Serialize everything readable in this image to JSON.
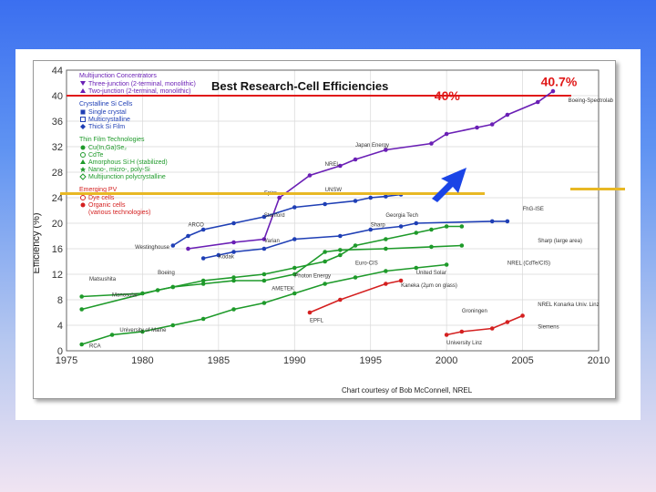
{
  "chart_data": {
    "type": "line",
    "title": "Best Research-Cell Efficiencies",
    "ylabel": "Efficiency (%)",
    "xlabel": "",
    "xlim": [
      1975,
      2010
    ],
    "ylim": [
      0,
      44
    ],
    "xticks": [
      1975,
      1980,
      1985,
      1990,
      1995,
      2000,
      2005,
      2010
    ],
    "yticks": [
      0,
      4,
      8,
      12,
      16,
      20,
      24,
      28,
      32,
      36,
      40,
      44
    ],
    "credit": "Chart courtesy of Bob McConnell, NREL",
    "callout_record": "40.7%",
    "callout_goal": "40%",
    "legend": {
      "groups": [
        {
          "title": "Multijunction Concentrators",
          "color": "#6a1fb5",
          "entries": [
            {
              "label": "Three-junction (2-terminal, monolithic)",
              "marker": "triangle-down"
            },
            {
              "label": "Two-junction (2-terminal, monolithic)",
              "marker": "triangle-up"
            }
          ]
        },
        {
          "title": "Crystalline Si Cells",
          "color": "#1f3fb5",
          "entries": [
            {
              "label": "Single crystal",
              "marker": "square"
            },
            {
              "label": "Multicrystalline",
              "marker": "square-open"
            },
            {
              "label": "Thick Si Film",
              "marker": "diamond"
            }
          ]
        },
        {
          "title": "Thin Film Technologies",
          "color": "#1e9a2a",
          "entries": [
            {
              "label": "Cu(In,Ga)Se₂",
              "marker": "circle"
            },
            {
              "label": "CdTe",
              "marker": "circle-open"
            },
            {
              "label": "Amorphous Si:H (stabilized)",
              "marker": "triangle-up"
            },
            {
              "label": "Nano-, micro-, poly-Si",
              "marker": "star"
            },
            {
              "label": "Multijunction polycrystalline",
              "marker": "diamond-open"
            }
          ]
        },
        {
          "title": "Emerging PV",
          "color": "#d42020",
          "entries": [
            {
              "label": "Dye cells",
              "marker": "circle-open"
            },
            {
              "label": "Organic cells",
              "marker": "circle"
            },
            {
              "label": "(various technologies)",
              "marker": "none"
            }
          ]
        }
      ]
    },
    "series": [
      {
        "name": "Multijunction Concentrators",
        "color": "#6a1fb5",
        "x": [
          1983,
          1986,
          1988,
          1989,
          1991,
          1993,
          1994,
          1996,
          1999,
          2000,
          2002,
          2003,
          2004,
          2006,
          2007
        ],
        "y": [
          16,
          17,
          17.5,
          24,
          27.5,
          29,
          30,
          31.5,
          32.5,
          34,
          35,
          35.5,
          37,
          39,
          40.7
        ]
      },
      {
        "name": "Single crystal Si",
        "color": "#1f3fb5",
        "x": [
          1982,
          1983,
          1984,
          1986,
          1988,
          1990,
          1992,
          1994,
          1995,
          1996,
          1997
        ],
        "y": [
          16.5,
          18,
          19,
          20,
          21,
          22.5,
          23,
          23.5,
          24,
          24.2,
          24.5
        ]
      },
      {
        "name": "Multicrystalline Si",
        "color": "#1f3fb5",
        "x": [
          1984,
          1985,
          1986,
          1988,
          1990,
          1993,
          1995,
          1997,
          1998,
          2003,
          2004
        ],
        "y": [
          14.5,
          15,
          15.5,
          16,
          17.5,
          18,
          19,
          19.5,
          20,
          20.3,
          20.3
        ]
      },
      {
        "name": "Cu(In,Ga)Se2",
        "color": "#1e9a2a",
        "x": [
          1976,
          1981,
          1982,
          1984,
          1986,
          1988,
          1990,
          1992,
          1993,
          1994,
          1996,
          1998,
          1999,
          2000,
          2001
        ],
        "y": [
          6.5,
          9.5,
          10,
          11,
          11.5,
          12,
          13,
          14,
          15,
          16.5,
          17.5,
          18.5,
          19,
          19.5,
          19.5
        ]
      },
      {
        "name": "CdTe",
        "color": "#1e9a2a",
        "x": [
          1976,
          1980,
          1982,
          1984,
          1986,
          1988,
          1990,
          1992,
          1993,
          1996,
          1999,
          2001
        ],
        "y": [
          8.5,
          9,
          10,
          10.5,
          11,
          11,
          12,
          15.5,
          15.8,
          16,
          16.3,
          16.5
        ]
      },
      {
        "name": "Amorphous Si:H",
        "color": "#1e9a2a",
        "x": [
          1976,
          1978,
          1980,
          1982,
          1984,
          1986,
          1988,
          1990,
          1992,
          1994,
          1996,
          1998,
          2000
        ],
        "y": [
          1,
          2.5,
          3,
          4,
          5,
          6.5,
          7.5,
          9,
          10.5,
          11.5,
          12.5,
          13,
          13.5
        ]
      },
      {
        "name": "Dye cells",
        "color": "#d42020",
        "x": [
          1991,
          1993,
          1996,
          1997
        ],
        "y": [
          6,
          8,
          10.5,
          11
        ]
      },
      {
        "name": "Organic cells",
        "color": "#d42020",
        "x": [
          2000,
          2001,
          2003,
          2004,
          2005
        ],
        "y": [
          2.5,
          3,
          3.5,
          4.5,
          5.5
        ]
      }
    ],
    "annotations": [
      {
        "text": "Boeing-Spectrolab",
        "x": 2008,
        "y": 39
      },
      {
        "text": "Japan Energy",
        "x": 1994,
        "y": 32
      },
      {
        "text": "NREL",
        "x": 1992,
        "y": 29
      },
      {
        "text": "Spire",
        "x": 1988,
        "y": 24.5
      },
      {
        "text": "Varian",
        "x": 1988,
        "y": 17
      },
      {
        "text": "UNSW",
        "x": 1992,
        "y": 25
      },
      {
        "text": "Westinghouse",
        "x": 1979.5,
        "y": 16
      },
      {
        "text": "Stanford",
        "x": 1988,
        "y": 21
      },
      {
        "text": "ARCO",
        "x": 1983,
        "y": 19.5
      },
      {
        "text": "Georgia Tech",
        "x": 1996,
        "y": 21
      },
      {
        "text": "Sharp",
        "x": 1995,
        "y": 19.5
      },
      {
        "text": "Euro-CIS",
        "x": 1994,
        "y": 13.5
      },
      {
        "text": "Matsushita",
        "x": 1976.5,
        "y": 11
      },
      {
        "text": "Monosolar",
        "x": 1978,
        "y": 8.5
      },
      {
        "text": "Boeing",
        "x": 1981,
        "y": 12
      },
      {
        "text": "Kodak",
        "x": 1985,
        "y": 14.5
      },
      {
        "text": "AMETEK",
        "x": 1988.5,
        "y": 9.5
      },
      {
        "text": "Photon Energy",
        "x": 1990,
        "y": 11.5
      },
      {
        "text": "United Solar",
        "x": 1998,
        "y": 12
      },
      {
        "text": "RCA",
        "x": 1976.5,
        "y": 0.5
      },
      {
        "text": "University of Maine",
        "x": 1978.5,
        "y": 3
      },
      {
        "text": "EPFL",
        "x": 1991,
        "y": 4.5
      },
      {
        "text": "University Linz",
        "x": 2000,
        "y": 1
      },
      {
        "text": "Groningen",
        "x": 2001,
        "y": 6
      },
      {
        "text": "Siemens",
        "x": 2006,
        "y": 3.5
      },
      {
        "text": "NREL Konarka Univ. Linz",
        "x": 2006,
        "y": 7
      },
      {
        "text": "Sharp (large area)",
        "x": 2006,
        "y": 17
      },
      {
        "text": "NREL (CdTe/CIS)",
        "x": 2004,
        "y": 13.5
      },
      {
        "text": "FhG-ISE",
        "x": 2005,
        "y": 22
      },
      {
        "text": "Kaneka (2µm on glass)",
        "x": 1997,
        "y": 10
      }
    ]
  },
  "markup": {
    "pointer_arrow_color": "#1a44e6",
    "highlight_line_color": "#e8b824",
    "highlight_value": 24.5
  }
}
